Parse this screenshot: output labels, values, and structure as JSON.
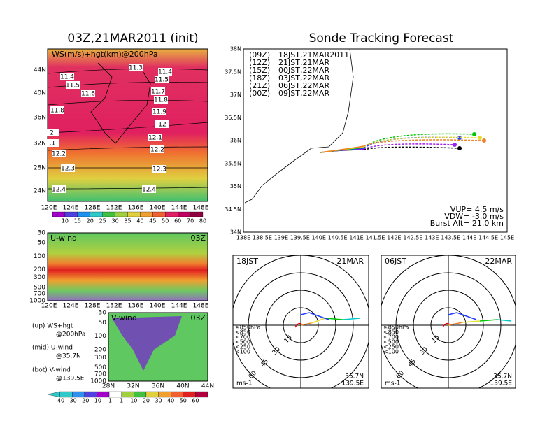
{
  "left": {
    "title": "03Z,21MAR2011 (init)",
    "map": {
      "label": "WS(m/s)+hgt(km)@200hPa",
      "lat_labels": [
        "44N",
        "40N",
        "36N",
        "32N",
        "28N",
        "24N"
      ],
      "lon_labels": [
        "120E",
        "124E",
        "128E",
        "132E",
        "136E",
        "140E",
        "144E",
        "148E"
      ],
      "contour_labels": [
        "11.3",
        "11.4",
        "11.4",
        "11.5",
        "11.5",
        "11.6",
        "11.7",
        "11.8",
        "11.8",
        "11.9",
        "12",
        "2",
        "12.1",
        ".1",
        "12.2",
        "12.2",
        "12.3",
        "12.3",
        "12.4",
        "12.4"
      ],
      "colorbar": [
        "10",
        "15",
        "20",
        "25",
        "30",
        "35",
        "40",
        "45",
        "50",
        "60",
        "70",
        "80"
      ]
    },
    "uwind": {
      "label": "U-wind",
      "time": "03Z",
      "p_labels": [
        "30",
        "50",
        "100",
        "200",
        "300",
        "500",
        "700",
        "1000"
      ],
      "lon_labels": [
        "120E",
        "124E",
        "128E",
        "132E",
        "136E",
        "140E",
        "144E",
        "148E"
      ]
    },
    "notes": [
      "(up) WS+hgt",
      "@200hPa",
      "(mid) U-wind",
      "@35.7N",
      "(bot) V-wind",
      "@139.5E"
    ],
    "vwind": {
      "label": "V-wind",
      "time": "03Z",
      "p_labels": [
        "30",
        "50",
        "100",
        "200",
        "300",
        "500",
        "700",
        "1000"
      ],
      "lat_labels": [
        "28N",
        "32N",
        "36N",
        "40N",
        "44N"
      ]
    },
    "colorbar": [
      "-40",
      "-30",
      "-20",
      "-10",
      "-1",
      "1",
      "10",
      "20",
      "30",
      "40",
      "50",
      "60"
    ]
  },
  "right": {
    "title": "Sonde Tracking Forecast",
    "track": {
      "lat_labels": [
        "38N",
        "37.5N",
        "37N",
        "36.5N",
        "36N",
        "35.5N",
        "35N",
        "34.5N",
        "34N"
      ],
      "lon_labels": [
        "138E",
        "138.5E",
        "139E",
        "139.5E",
        "140E",
        "140.5E",
        "141E",
        "141.5E",
        "142E",
        "142.5E",
        "143E",
        "143.5E",
        "144E",
        "144.5E",
        "145E"
      ],
      "legend": [
        {
          "utc": "(09Z)",
          "jst": "18JST,21MAR2011",
          "color": "#000000"
        },
        {
          "utc": "(12Z)",
          "jst": "21JST,21MAR",
          "color": "#a020f0"
        },
        {
          "utc": "(15Z)",
          "jst": "00JST,22MAR",
          "color": "#1e3cff"
        },
        {
          "utc": "(18Z)",
          "jst": "03JST,22MAR",
          "color": "#00c800"
        },
        {
          "utc": "(21Z)",
          "jst": "06JST,22MAR",
          "color": "#e6dc32"
        },
        {
          "utc": "(00Z)",
          "jst": "09JST,22MAR",
          "color": "#f08228"
        }
      ],
      "params": [
        "VUP= 4.5 m/s",
        "VDW= -3.0 m/s",
        "Burst Alt= 21.0 km"
      ]
    },
    "polars": [
      {
        "time": "18JST",
        "date": "21MAR",
        "rings": [
          "15",
          "30",
          "45",
          "60"
        ],
        "unit": "ms-1",
        "lat": "35.7N",
        "lon": "139.5E"
      },
      {
        "time": "06JST",
        "date": "22MAR",
        "rings": [
          "15",
          "30",
          "45",
          "60"
        ],
        "unit": "ms-1",
        "lat": "35.7N",
        "lon": "139.5E"
      }
    ],
    "levels": [
      {
        "label": "≥850hPa",
        "color": "#e60000"
      },
      {
        "label": "<850",
        "color": "#f08228"
      },
      {
        "label": "<700",
        "color": "#e6dc32"
      },
      {
        "label": "<500",
        "color": "#00c800"
      },
      {
        "label": "<250",
        "color": "#00c8c8"
      },
      {
        "label": "<100",
        "color": "#1e3cff"
      }
    ]
  }
}
